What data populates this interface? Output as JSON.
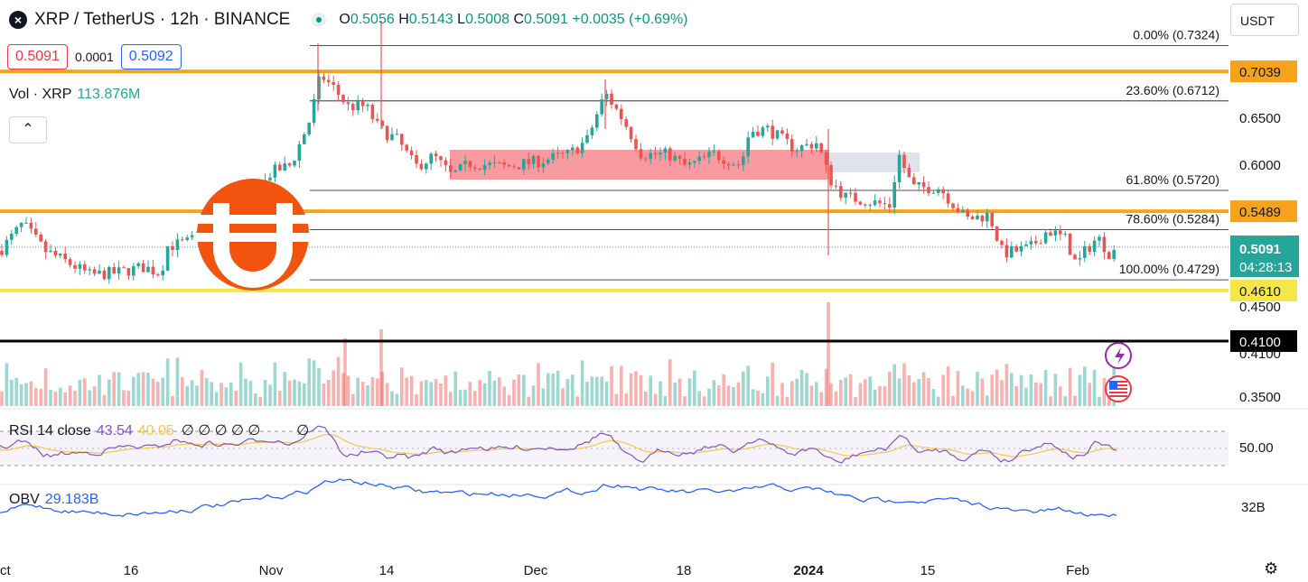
{
  "header": {
    "symbol": "XRP / TetherUS · 12h · BINANCE",
    "ohlc": {
      "o_label": "O",
      "o": "0.5056",
      "h_label": "H",
      "h": "0.5143",
      "l_label": "L",
      "l": "0.5008",
      "c_label": "C",
      "c": "0.5091",
      "change": "+0.0035 (+0.69%)"
    }
  },
  "trade": {
    "sell": "0.5091",
    "spread": "0.0001",
    "buy": "0.5092"
  },
  "volume": {
    "label": "Vol · XRP",
    "value": "113.876M"
  },
  "currency": "USDT",
  "rsi": {
    "label": "RSI 14 close",
    "value": "43.54",
    "ma": "40.05",
    "extras": "∅ ∅ ∅ ∅ ∅",
    "trailing": "∅"
  },
  "obv": {
    "label": "OBV",
    "value": "29.183B"
  },
  "colors": {
    "up": "#26a69a",
    "down": "#ef5350",
    "orange": "#f7a21b",
    "yellow": "#f5e64a",
    "black": "#000000",
    "rsi": "#7e57c2",
    "rsi_ma": "#f7c948",
    "obv": "#2962ff",
    "zone": "#f7888f",
    "zone_grey": "#e0e3eb"
  },
  "chart_data": {
    "type": "candlestick",
    "price_axis_ticks": [
      "0.6500",
      "0.6000",
      "0.4500",
      "0.4100",
      "0.3500"
    ],
    "x_ticks": [
      "ct",
      "16",
      "Nov",
      "14",
      "Dec",
      "18",
      "2024",
      "15",
      "Feb"
    ],
    "horizontal_levels": [
      {
        "price": 0.7039,
        "label": "0.7039",
        "color": "orange"
      },
      {
        "price": 0.5489,
        "label": "0.5489",
        "color": "orange"
      },
      {
        "price": 0.461,
        "label": "0.4610",
        "color": "yellow"
      },
      {
        "price": 0.41,
        "label": "0.4100",
        "color": "black"
      }
    ],
    "fibonacci": [
      {
        "label": "0.00% (0.7324)",
        "price": 0.7324
      },
      {
        "label": "23.60% (0.6712)",
        "price": 0.6712
      },
      {
        "label": "61.80% (0.5720)",
        "price": 0.572
      },
      {
        "label": "78.60% (0.5284)",
        "price": 0.5284
      },
      {
        "label": "100.00% (0.4729)",
        "price": 0.4729
      }
    ],
    "last_price": {
      "value": "0.5091",
      "countdown": "04:28:13"
    },
    "rsi_axis": "50.00",
    "obv_axis": "32B",
    "keypoints": [
      {
        "t": 0,
        "p": 0.505
      },
      {
        "t": 25,
        "p": 0.535
      },
      {
        "t": 50,
        "p": 0.505
      },
      {
        "t": 75,
        "p": 0.492
      },
      {
        "t": 100,
        "p": 0.478
      },
      {
        "t": 130,
        "p": 0.481
      },
      {
        "t": 160,
        "p": 0.487
      },
      {
        "t": 178,
        "p": 0.48
      },
      {
        "t": 185,
        "p": 0.51
      },
      {
        "t": 210,
        "p": 0.515
      },
      {
        "t": 230,
        "p": 0.53
      },
      {
        "t": 255,
        "p": 0.54
      },
      {
        "t": 280,
        "p": 0.56
      },
      {
        "t": 300,
        "p": 0.592
      },
      {
        "t": 322,
        "p": 0.6
      },
      {
        "t": 343,
        "p": 0.65
      },
      {
        "t": 355,
        "p": 0.7
      },
      {
        "t": 370,
        "p": 0.685
      },
      {
        "t": 385,
        "p": 0.665
      },
      {
        "t": 405,
        "p": 0.665
      },
      {
        "t": 420,
        "p": 0.64
      },
      {
        "t": 440,
        "p": 0.628
      },
      {
        "t": 460,
        "p": 0.598
      },
      {
        "t": 480,
        "p": 0.61
      },
      {
        "t": 500,
        "p": 0.588
      },
      {
        "t": 520,
        "p": 0.602
      },
      {
        "t": 560,
        "p": 0.598
      },
      {
        "t": 600,
        "p": 0.605
      },
      {
        "t": 630,
        "p": 0.612
      },
      {
        "t": 650,
        "p": 0.628
      },
      {
        "t": 670,
        "p": 0.68
      },
      {
        "t": 690,
        "p": 0.65
      },
      {
        "t": 710,
        "p": 0.612
      },
      {
        "t": 740,
        "p": 0.612
      },
      {
        "t": 760,
        "p": 0.598
      },
      {
        "t": 790,
        "p": 0.612
      },
      {
        "t": 820,
        "p": 0.6
      },
      {
        "t": 830,
        "p": 0.638
      },
      {
        "t": 850,
        "p": 0.64
      },
      {
        "t": 880,
        "p": 0.618
      },
      {
        "t": 905,
        "p": 0.625
      },
      {
        "t": 918,
        "p": 0.585
      },
      {
        "t": 935,
        "p": 0.565
      },
      {
        "t": 960,
        "p": 0.56
      },
      {
        "t": 985,
        "p": 0.555
      },
      {
        "t": 995,
        "p": 0.612
      },
      {
        "t": 1010,
        "p": 0.575
      },
      {
        "t": 1040,
        "p": 0.575
      },
      {
        "t": 1070,
        "p": 0.54
      },
      {
        "t": 1095,
        "p": 0.545
      },
      {
        "t": 1110,
        "p": 0.502
      },
      {
        "t": 1140,
        "p": 0.508
      },
      {
        "t": 1160,
        "p": 0.528
      },
      {
        "t": 1180,
        "p": 0.518
      },
      {
        "t": 1192,
        "p": 0.488
      },
      {
        "t": 1200,
        "p": 0.503
      },
      {
        "t": 1215,
        "p": 0.52
      },
      {
        "t": 1230,
        "p": 0.5
      },
      {
        "t": 1238,
        "p": 0.5091
      }
    ]
  }
}
